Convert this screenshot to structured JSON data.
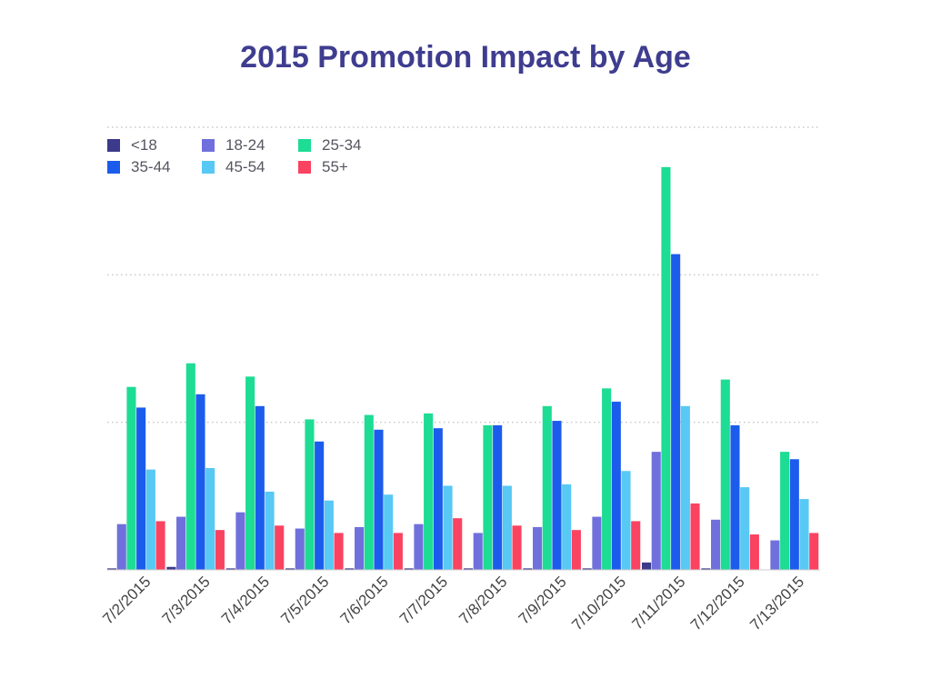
{
  "chart_data": {
    "type": "bar",
    "title": "2015 Promotion Impact by Age",
    "xlabel": "",
    "ylabel": "",
    "categories": [
      "7/2/2015",
      "7/3/2015",
      "7/4/2015",
      "7/5/2015",
      "7/6/2015",
      "7/7/2015",
      "7/8/2015",
      "7/9/2015",
      "7/10/2015",
      "7/11/2015",
      "7/12/2015",
      "7/13/2015"
    ],
    "ylim": [
      0,
      3
    ],
    "grid": true,
    "legend_position": "top-left",
    "series": [
      {
        "name": "<18",
        "color": "#3c3a8a",
        "values": [
          0.01,
          0.02,
          0.01,
          0.01,
          0.01,
          0.01,
          0.01,
          0.01,
          0.01,
          0.05,
          0.01,
          0.0
        ]
      },
      {
        "name": "18-24",
        "color": "#7070dc",
        "values": [
          0.31,
          0.36,
          0.39,
          0.28,
          0.29,
          0.31,
          0.25,
          0.29,
          0.36,
          0.8,
          0.34,
          0.2
        ]
      },
      {
        "name": "25-34",
        "color": "#1ddc94",
        "values": [
          1.24,
          1.4,
          1.31,
          1.02,
          1.05,
          1.06,
          0.98,
          1.11,
          1.23,
          2.73,
          1.29,
          0.8
        ]
      },
      {
        "name": "35-44",
        "color": "#1c5ced",
        "values": [
          1.1,
          1.19,
          1.11,
          0.87,
          0.95,
          0.96,
          0.98,
          1.01,
          1.14,
          2.14,
          0.98,
          0.75
        ]
      },
      {
        "name": "45-54",
        "color": "#58c8f4",
        "values": [
          0.68,
          0.69,
          0.53,
          0.47,
          0.51,
          0.57,
          0.57,
          0.58,
          0.67,
          1.11,
          0.56,
          0.48
        ]
      },
      {
        "name": "55+",
        "color": "#fa4361",
        "values": [
          0.33,
          0.27,
          0.3,
          0.25,
          0.25,
          0.35,
          0.3,
          0.27,
          0.33,
          0.45,
          0.24,
          0.25
        ]
      }
    ]
  }
}
